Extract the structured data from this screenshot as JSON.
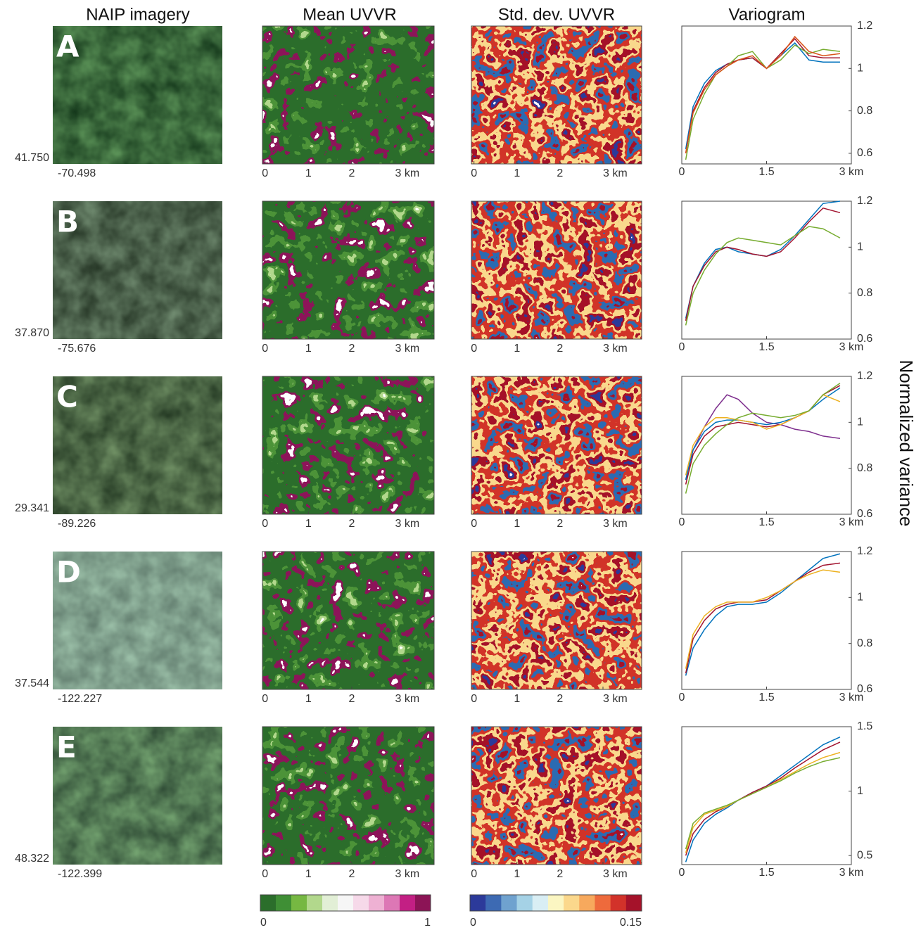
{
  "figure": {
    "column_titles": [
      "NAIP imagery",
      "Mean UVVR",
      "Std. dev. UVVR",
      "Variogram"
    ],
    "y_label": "Normalized variance",
    "rows": [
      {
        "letter": "A",
        "lat": "41.750",
        "lon": "-70.498"
      },
      {
        "letter": "B",
        "lat": "37.870",
        "lon": "-75.676"
      },
      {
        "letter": "C",
        "lat": "29.341",
        "lon": "-89.226"
      },
      {
        "letter": "D",
        "lat": "37.544",
        "lon": "-122.227"
      },
      {
        "letter": "E",
        "lat": "48.322",
        "lon": "-122.399"
      }
    ],
    "map_axis": {
      "xlim": [
        -0.06,
        3.9
      ],
      "xticks": [
        0,
        1,
        2,
        {
          "value": 3,
          "label": "3 km"
        }
      ]
    },
    "colorbars": [
      {
        "colors": [
          "#2b6e2b",
          "#3f8f35",
          "#76b842",
          "#b2d88c",
          "#e2efd6",
          "#f6f6f6",
          "#f6d9e9",
          "#eeb1d3",
          "#dd77b5",
          "#c31f84",
          "#8c1456"
        ],
        "lim": [
          0,
          1
        ],
        "ticks": [
          0,
          1
        ]
      },
      {
        "colors": [
          "#2c3a9a",
          "#3d6ab3",
          "#6fa2cf",
          "#a5d2e6",
          "#d9eef4",
          "#fbf6c2",
          "#fbd88c",
          "#f7a95d",
          "#ee6a3c",
          "#d2322a",
          "#a5122a"
        ],
        "lim": [
          0,
          0.15
        ],
        "ticks": [
          0,
          0.15
        ]
      }
    ]
  },
  "chart_data": [
    {
      "type": "line",
      "x": [
        0.07,
        0.2,
        0.4,
        0.6,
        0.8,
        1.0,
        1.25,
        1.5,
        1.75,
        2.0,
        2.25,
        2.5,
        2.8
      ],
      "xlim": [
        0,
        3
      ],
      "xticks": [
        0,
        1.5,
        {
          "value": 3,
          "label": "3 km"
        }
      ],
      "ylim": [
        0.55,
        1.2
      ],
      "yticks": [
        0.6,
        0.8,
        1,
        1.2
      ],
      "series": [
        {
          "color": "#0072bd",
          "values": [
            0.62,
            0.82,
            0.93,
            0.99,
            1.02,
            1.04,
            1.05,
            1.0,
            1.06,
            1.12,
            1.04,
            1.03,
            1.03
          ]
        },
        {
          "color": "#a2142f",
          "values": [
            0.6,
            0.8,
            0.91,
            0.98,
            1.02,
            1.04,
            1.05,
            1.0,
            1.07,
            1.14,
            1.06,
            1.05,
            1.05
          ]
        },
        {
          "color": "#77ac30",
          "values": [
            0.57,
            0.76,
            0.88,
            0.97,
            1.01,
            1.06,
            1.08,
            1.0,
            1.04,
            1.11,
            1.07,
            1.09,
            1.08
          ]
        },
        {
          "color": "#d95319",
          "values": [
            0.6,
            0.79,
            0.9,
            0.97,
            1.01,
            1.04,
            1.06,
            1.0,
            1.06,
            1.15,
            1.08,
            1.06,
            1.07
          ]
        }
      ]
    },
    {
      "type": "line",
      "x": [
        0.07,
        0.2,
        0.4,
        0.6,
        0.8,
        1.0,
        1.25,
        1.5,
        1.75,
        2.0,
        2.25,
        2.5,
        2.8
      ],
      "xlim": [
        0,
        3
      ],
      "xticks": [
        0,
        1.5,
        {
          "value": 3,
          "label": "3 km"
        }
      ],
      "ylim": [
        0.6,
        1.2
      ],
      "yticks": [
        0.6,
        0.8,
        1,
        1.2
      ],
      "series": [
        {
          "color": "#0072bd",
          "values": [
            0.69,
            0.83,
            0.93,
            0.99,
            1.0,
            0.98,
            0.97,
            0.96,
            0.99,
            1.05,
            1.12,
            1.19,
            1.2
          ]
        },
        {
          "color": "#a2142f",
          "values": [
            0.68,
            0.83,
            0.92,
            0.98,
            1.0,
            0.99,
            0.97,
            0.96,
            0.98,
            1.04,
            1.11,
            1.17,
            1.15
          ]
        },
        {
          "color": "#77ac30",
          "values": [
            0.66,
            0.8,
            0.9,
            0.97,
            1.02,
            1.04,
            1.03,
            1.02,
            1.01,
            1.05,
            1.09,
            1.08,
            1.04
          ]
        }
      ]
    },
    {
      "type": "line",
      "x": [
        0.07,
        0.2,
        0.4,
        0.6,
        0.8,
        1.0,
        1.25,
        1.5,
        1.75,
        2.0,
        2.25,
        2.5,
        2.8
      ],
      "xlim": [
        0,
        3
      ],
      "xticks": [
        0,
        1.5,
        {
          "value": 3,
          "label": "3 km"
        }
      ],
      "ylim": [
        0.6,
        1.2
      ],
      "yticks": [
        0.6,
        0.8,
        1,
        1.2
      ],
      "series": [
        {
          "color": "#7e2f8e",
          "values": [
            0.75,
            0.88,
            0.98,
            1.06,
            1.12,
            1.1,
            1.04,
            1.0,
            0.99,
            0.97,
            0.96,
            0.94,
            0.93
          ]
        },
        {
          "color": "#0072bd",
          "values": [
            0.75,
            0.88,
            0.96,
            1.0,
            1.01,
            1.01,
            1.0,
            0.99,
            1.0,
            1.02,
            1.05,
            1.1,
            1.15
          ]
        },
        {
          "color": "#a2142f",
          "values": [
            0.73,
            0.86,
            0.94,
            0.98,
            0.99,
            1.0,
            0.99,
            0.98,
            0.99,
            1.02,
            1.05,
            1.12,
            1.16
          ]
        },
        {
          "color": "#edb120",
          "values": [
            0.77,
            0.9,
            0.98,
            1.02,
            1.02,
            1.01,
            1.0,
            0.97,
            0.99,
            1.02,
            1.05,
            1.12,
            1.09
          ]
        },
        {
          "color": "#77ac30",
          "values": [
            0.69,
            0.82,
            0.9,
            0.95,
            0.99,
            1.02,
            1.04,
            1.03,
            1.02,
            1.03,
            1.05,
            1.12,
            1.17
          ]
        }
      ]
    },
    {
      "type": "line",
      "x": [
        0.07,
        0.2,
        0.4,
        0.6,
        0.8,
        1.0,
        1.25,
        1.5,
        1.75,
        2.0,
        2.25,
        2.5,
        2.8
      ],
      "xlim": [
        0,
        3
      ],
      "xticks": [
        0,
        1.5,
        {
          "value": 3,
          "label": "3 km"
        }
      ],
      "ylim": [
        0.6,
        1.2
      ],
      "yticks": [
        0.6,
        0.8,
        1,
        1.2
      ],
      "series": [
        {
          "color": "#0072bd",
          "values": [
            0.66,
            0.78,
            0.86,
            0.92,
            0.96,
            0.97,
            0.97,
            0.98,
            1.02,
            1.07,
            1.12,
            1.17,
            1.19
          ]
        },
        {
          "color": "#a2142f",
          "values": [
            0.67,
            0.82,
            0.9,
            0.95,
            0.97,
            0.98,
            0.98,
            0.99,
            1.03,
            1.07,
            1.11,
            1.14,
            1.15
          ]
        },
        {
          "color": "#edb120",
          "values": [
            0.69,
            0.84,
            0.92,
            0.96,
            0.98,
            0.98,
            0.98,
            1.0,
            1.03,
            1.07,
            1.1,
            1.12,
            1.11
          ]
        }
      ]
    },
    {
      "type": "line",
      "x": [
        0.07,
        0.2,
        0.4,
        0.6,
        0.8,
        1.0,
        1.25,
        1.5,
        1.75,
        2.0,
        2.25,
        2.5,
        2.8
      ],
      "xlim": [
        0,
        3
      ],
      "xticks": [
        0,
        1.5,
        {
          "value": 3,
          "label": "3 km"
        }
      ],
      "ylim": [
        0.43,
        1.5
      ],
      "yticks": [
        0.5,
        1,
        1.5
      ],
      "series": [
        {
          "color": "#0072bd",
          "values": [
            0.45,
            0.62,
            0.75,
            0.82,
            0.87,
            0.93,
            0.99,
            1.04,
            1.12,
            1.2,
            1.28,
            1.36,
            1.42
          ]
        },
        {
          "color": "#a2142f",
          "values": [
            0.5,
            0.67,
            0.78,
            0.84,
            0.88,
            0.93,
            0.99,
            1.04,
            1.1,
            1.18,
            1.25,
            1.32,
            1.38
          ]
        },
        {
          "color": "#edb120",
          "values": [
            0.52,
            0.72,
            0.82,
            0.85,
            0.88,
            0.93,
            0.98,
            1.03,
            1.09,
            1.15,
            1.21,
            1.26,
            1.3
          ]
        },
        {
          "color": "#77ac30",
          "values": [
            0.55,
            0.75,
            0.83,
            0.86,
            0.89,
            0.93,
            0.98,
            1.03,
            1.08,
            1.14,
            1.19,
            1.23,
            1.26
          ]
        }
      ]
    }
  ]
}
